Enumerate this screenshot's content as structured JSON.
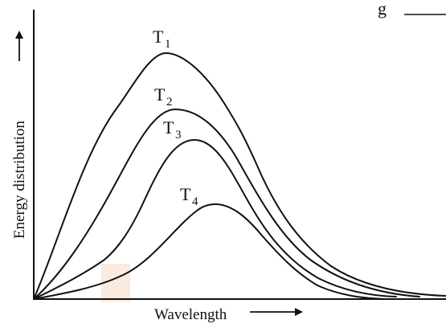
{
  "figure": {
    "top_right_text": "g",
    "watermark_color": "#f7d9c4",
    "x_axis": {
      "label": "Wavelength"
    },
    "y_axis": {
      "label": "Energy distribution"
    },
    "curves": [
      {
        "id": "T1",
        "main": "T",
        "sub": "1"
      },
      {
        "id": "T2",
        "main": "T",
        "sub": "2"
      },
      {
        "id": "T3",
        "main": "T",
        "sub": "3"
      },
      {
        "id": "T4",
        "main": "T",
        "sub": "4"
      }
    ]
  }
}
